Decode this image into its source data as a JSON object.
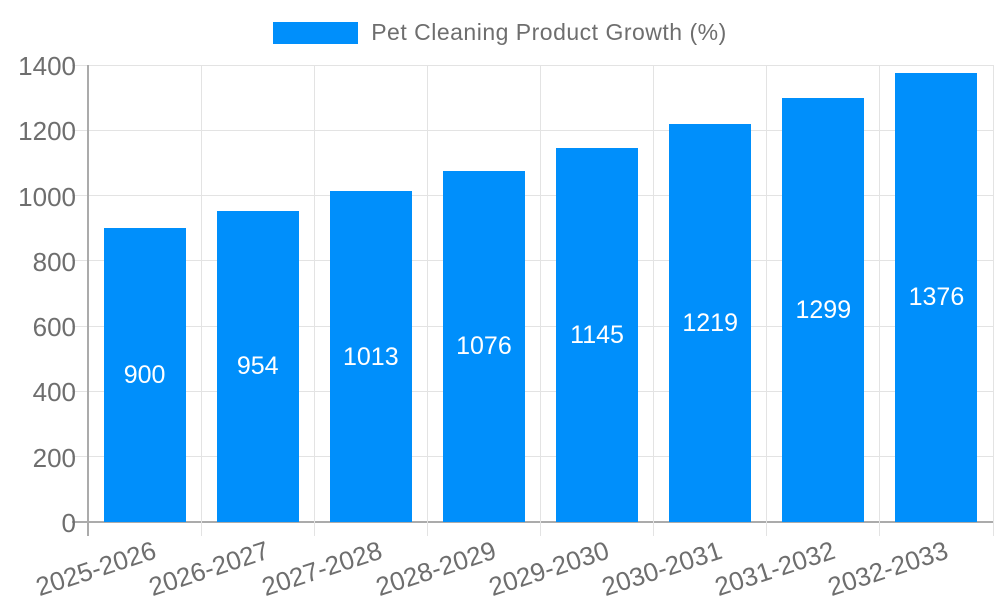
{
  "chart_data": {
    "type": "bar",
    "title": "Pet Cleaning Product Growth (%)",
    "legend_position": "top",
    "legend_entries": [
      {
        "label": "Pet Cleaning Product Growth (%)",
        "color": "#008FFB"
      }
    ],
    "categories": [
      "2025-2026",
      "2026-2027",
      "2027-2028",
      "2028-2029",
      "2029-2030",
      "2030-2031",
      "2031-2032",
      "2032-2033"
    ],
    "series": [
      {
        "name": "Pet Cleaning Product Growth (%)",
        "values": [
          900,
          954,
          1013,
          1076,
          1145,
          1219,
          1299,
          1376
        ],
        "color": "#008FFB"
      }
    ],
    "xlabel": "",
    "ylabel": "",
    "ylim": [
      0,
      1400
    ],
    "yticks": [
      0,
      200,
      400,
      600,
      800,
      1000,
      1200,
      1400
    ],
    "grid": true,
    "x_tick_rotation_deg": -18,
    "bar_value_labels_visible": true
  },
  "colors": {
    "bar": "#008FFB",
    "bar_label": "#FFFFFF",
    "axis_label": "#6E6E6E",
    "legend_text": "#6E6E6E",
    "gridline": "#E3E3E3",
    "axis_line": "#ABABAB",
    "background": "#FFFFFF"
  }
}
